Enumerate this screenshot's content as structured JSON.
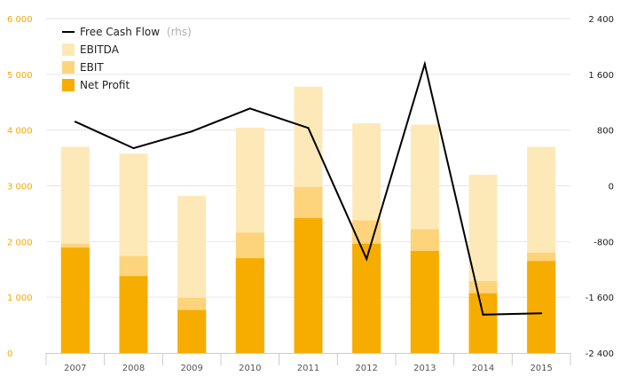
{
  "chart_data": {
    "type": "bar",
    "categories": [
      "2007",
      "2008",
      "2009",
      "2010",
      "2011",
      "2012",
      "2013",
      "2014",
      "2015"
    ],
    "series": [
      {
        "name": "EBITDA",
        "kind": "bar",
        "axis": "left",
        "color": "#fde9b8",
        "values": [
          3700,
          3580,
          2820,
          4040,
          4780,
          4120,
          4100,
          3200,
          3700
        ]
      },
      {
        "name": "EBIT",
        "kind": "bar",
        "axis": "left",
        "color": "#fdd47c",
        "values": [
          1960,
          1740,
          990,
          2160,
          2980,
          2380,
          2220,
          1290,
          1800
        ]
      },
      {
        "name": "Net Profit",
        "kind": "bar",
        "axis": "left",
        "color": "#f7ac00",
        "values": [
          1890,
          1380,
          770,
          1700,
          2420,
          1960,
          1830,
          1070,
          1650
        ]
      },
      {
        "name": "Free Cash Flow",
        "note": "(rhs)",
        "kind": "line",
        "axis": "right",
        "color": "#000000",
        "values": [
          920,
          540,
          780,
          1110,
          830,
          -1050,
          1750,
          -1850,
          -1830
        ]
      }
    ],
    "left_axis": {
      "min": 0,
      "max": 6000,
      "ticks": [
        0,
        1000,
        2000,
        3000,
        4000,
        5000,
        6000
      ],
      "tick_labels": [
        "0",
        "1 000",
        "2 000",
        "3 000",
        "4 000",
        "5 000",
        "6 000"
      ],
      "color": "#f5a800"
    },
    "right_axis": {
      "min": -2400,
      "max": 2400,
      "ticks": [
        -2400,
        -1600,
        -800,
        0,
        800,
        1600,
        2400
      ],
      "tick_labels": [
        "-2 400",
        "-1 600",
        "-800",
        "0",
        "800",
        "1 600",
        "2 400"
      ],
      "color": "#1a1a1a"
    },
    "grid": true,
    "legend_position": "top-left",
    "title": "",
    "xlabel": "",
    "ylabel": ""
  }
}
